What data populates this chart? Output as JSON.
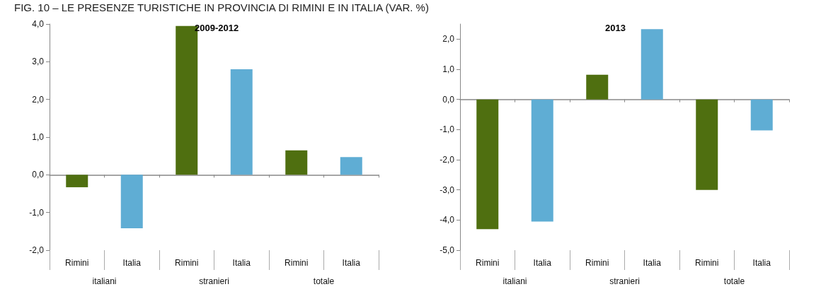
{
  "chart_data": [
    {
      "type": "bar",
      "subtitle": "FIG. 10 – LE PRESENZE TURISTICHE IN PROVINCIA DI RIMINI E IN ITALIA (VAR. %)",
      "title": "2009-2012",
      "categories": [
        "Rimini",
        "Italia",
        "Rimini",
        "Italia",
        "Rimini",
        "Italia"
      ],
      "values": [
        -0.33,
        -1.42,
        3.95,
        2.8,
        0.65,
        0.47
      ],
      "colors": [
        "#4f6f10",
        "#5fadd4",
        "#4f6f10",
        "#5fadd4",
        "#4f6f10",
        "#5fadd4"
      ],
      "ylim": [
        -2,
        4
      ],
      "yticks": [
        {
          "value": -2,
          "label": "-2,0"
        },
        {
          "value": -1,
          "label": "-1,0"
        },
        {
          "value": 0,
          "label": "0,0"
        },
        {
          "value": 1,
          "label": "1,0"
        },
        {
          "value": 2,
          "label": "2,0"
        },
        {
          "value": 3,
          "label": "3,0"
        },
        {
          "value": 4,
          "label": "4,0"
        }
      ],
      "annotations": [
        "italiani",
        "stranieri",
        "totale"
      ]
    },
    {
      "type": "bar",
      "title": "2013",
      "categories": [
        "Rimini",
        "Italia",
        "Rimini",
        "Italia",
        "Rimini",
        "Italia"
      ],
      "values": [
        -4.3,
        -4.05,
        0.82,
        2.33,
        -3.0,
        -1.03
      ],
      "colors": [
        "#4f6f10",
        "#5fadd4",
        "#4f6f10",
        "#5fadd4",
        "#4f6f10",
        "#5fadd4"
      ],
      "ylim": [
        -5,
        2.5
      ],
      "yticks": [
        {
          "value": -5,
          "label": "-5,0"
        },
        {
          "value": -4,
          "label": "-4,0"
        },
        {
          "value": -3,
          "label": "-3,0"
        },
        {
          "value": -2,
          "label": "-2,0"
        },
        {
          "value": -1,
          "label": "-1,0"
        },
        {
          "value": 0,
          "label": "0,0"
        },
        {
          "value": 1,
          "label": "1,0"
        },
        {
          "value": 2,
          "label": "2,0"
        }
      ],
      "annotations": [
        "italiani",
        "stranieri",
        "totale"
      ]
    }
  ]
}
